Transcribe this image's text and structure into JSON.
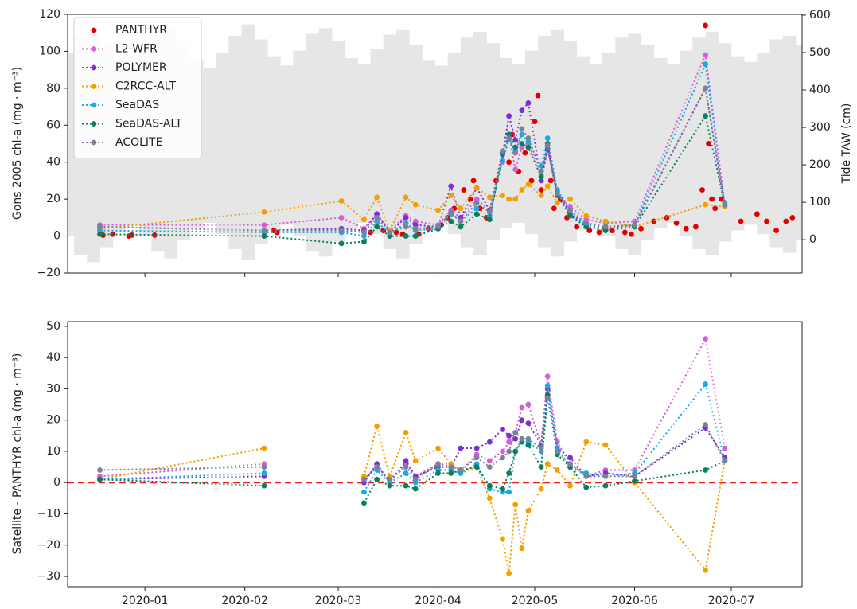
{
  "chart_data": [
    {
      "type": "line",
      "ylabel": "Gons 2005 chl-a (mg · m⁻³)",
      "y2label": "Tide TAW (cm)",
      "xlim": [
        -24,
        204
      ],
      "ylim": [
        -20,
        120
      ],
      "yticks": [
        {
          "value": -20,
          "label": "−20"
        },
        0,
        20,
        40,
        60,
        80,
        100,
        120
      ],
      "y2lim": [
        -89,
        602
      ],
      "y2ticks": [
        0,
        100,
        200,
        300,
        400,
        500,
        600
      ],
      "legend": "upper left",
      "tide": {
        "axis": "y2",
        "color": "#e6e6e6",
        "x": [
          -24,
          -20,
          -16,
          -12,
          -8,
          -4,
          0,
          4,
          8,
          12,
          16,
          20,
          24,
          28,
          32,
          36,
          40,
          44,
          48,
          52,
          56,
          60,
          64,
          68,
          72,
          76,
          80,
          84,
          88,
          92,
          96,
          100,
          104,
          108,
          112,
          116,
          120,
          124,
          128,
          132,
          136,
          140,
          144,
          148,
          152,
          156,
          160,
          164,
          168,
          172,
          176,
          180,
          184,
          188,
          192,
          196,
          200,
          204
        ],
        "high": [
          500,
          540,
          560,
          520,
          480,
          470,
          510,
          550,
          570,
          530,
          480,
          460,
          500,
          545,
          575,
          535,
          490,
          465,
          505,
          550,
          565,
          530,
          485,
          470,
          510,
          548,
          560,
          520,
          480,
          465,
          500,
          540,
          555,
          525,
          485,
          470,
          505,
          545,
          560,
          530,
          490,
          470,
          500,
          540,
          550,
          520,
          485,
          470,
          505,
          540,
          555,
          525,
          490,
          475,
          500,
          535,
          545,
          520
        ],
        "low": [
          10,
          -40,
          -60,
          -20,
          20,
          40,
          10,
          -30,
          -50,
          0,
          30,
          45,
          15,
          -25,
          -55,
          -10,
          25,
          40,
          10,
          -30,
          -45,
          -5,
          30,
          45,
          15,
          -25,
          -50,
          -10,
          25,
          40,
          15,
          -20,
          -40,
          0,
          30,
          45,
          15,
          -20,
          -45,
          -5,
          25,
          40,
          10,
          -25,
          -40,
          0,
          30,
          45,
          10,
          -25,
          -40,
          -5,
          25,
          40,
          15,
          -20,
          -35,
          0
        ]
      },
      "x": [
        -14,
        37,
        61,
        68,
        72,
        76,
        81,
        84,
        91,
        95,
        98,
        103,
        107,
        111,
        113,
        115,
        117,
        119,
        123,
        125,
        128,
        132,
        137,
        143,
        152,
        174,
        180
      ],
      "series": [
        {
          "name": "PANTHYR",
          "color": "#e00000",
          "style": "markers",
          "x": [
            -13,
            -10,
            -5,
            -4,
            3,
            37,
            40,
            41,
            70,
            74,
            78,
            80,
            85,
            88,
            92,
            94,
            96,
            99,
            101,
            102,
            104,
            106,
            109,
            111,
            113,
            114,
            116,
            118,
            120,
            121,
            122,
            123,
            126,
            127,
            129,
            131,
            134,
            138,
            141,
            145,
            149,
            151,
            154,
            158,
            162,
            165,
            168,
            171,
            173,
            174,
            175,
            176,
            177,
            179,
            185,
            190,
            193,
            196,
            199,
            201
          ],
          "values": [
            0.5,
            1,
            0,
            0.5,
            0.5,
            2,
            3,
            2,
            2,
            3,
            2,
            1,
            1,
            4,
            6,
            10,
            15,
            25,
            20,
            30,
            15,
            10,
            30,
            45,
            40,
            55,
            35,
            45,
            30,
            62,
            76,
            25,
            30,
            15,
            20,
            10,
            5,
            3,
            2,
            3,
            2,
            1,
            4,
            8,
            10,
            7,
            4,
            5,
            25,
            114,
            50,
            20,
            15,
            20,
            8,
            12,
            8,
            3,
            8,
            10
          ]
        },
        {
          "name": "L2-WFR",
          "color": "#d65fd8",
          "style": "dotted",
          "values": [
            6,
            6,
            10,
            4,
            12,
            3,
            11,
            8,
            6,
            14,
            10,
            20,
            14,
            40,
            55,
            36,
            48,
            50,
            33,
            47,
            22,
            16,
            9,
            7,
            8,
            98,
            17
          ]
        },
        {
          "name": "POLYMER",
          "color": "#7b2fd4",
          "style": "dotted",
          "values": [
            5,
            3,
            4,
            3,
            12,
            2,
            10,
            6,
            5,
            27,
            10,
            26,
            14,
            44,
            65,
            52,
            68,
            72,
            30,
            47,
            24,
            12,
            6,
            4,
            6,
            80,
            16
          ]
        },
        {
          "name": "C2RCC-ALT",
          "color": "#f0a000",
          "style": "dotted",
          "values": [
            4,
            13,
            19,
            9,
            21,
            3,
            21,
            17,
            14,
            22,
            15,
            26,
            21,
            22,
            20,
            20,
            25,
            28,
            22,
            27,
            18,
            20,
            11,
            8,
            5,
            17,
            16
          ]
        },
        {
          "name": "SeaDAS",
          "color": "#1aa8e6",
          "style": "dotted",
          "values": [
            3,
            2,
            2,
            0,
            8,
            1,
            7,
            3,
            4,
            12,
            8,
            15,
            11,
            41,
            52,
            46,
            55,
            51,
            38,
            53,
            25,
            14,
            6,
            5,
            6,
            93,
            18
          ]
        },
        {
          "name": "SeaDAS-ALT",
          "color": "#08805e",
          "style": "dotted",
          "values": [
            1,
            0,
            -4,
            -3,
            5,
            0,
            0,
            0,
            4,
            8,
            5,
            12,
            9,
            45,
            55,
            48,
            50,
            48,
            32,
            50,
            22,
            11,
            5,
            3,
            5,
            65,
            17
          ]
        },
        {
          "name": "ACOLITE",
          "color": "#7c8296",
          "style": "dotted",
          "values": [
            5,
            3,
            3,
            2,
            10,
            2,
            5,
            4,
            5,
            13,
            8,
            18,
            13,
            46,
            53,
            45,
            58,
            53,
            35,
            49,
            23,
            14,
            7,
            5,
            6,
            80,
            17
          ]
        }
      ]
    },
    {
      "type": "line",
      "ylabel": "Satellite - PANTHYR chl-a (mg · m⁻³)",
      "xlim": [
        -24,
        204
      ],
      "xticks": [
        {
          "value": 0,
          "label": "2020-01"
        },
        {
          "value": 31,
          "label": "2020-02"
        },
        {
          "value": 60,
          "label": "2020-03"
        },
        {
          "value": 91,
          "label": "2020-04"
        },
        {
          "value": 121,
          "label": "2020-05"
        },
        {
          "value": 152,
          "label": "2020-06"
        },
        {
          "value": 182,
          "label": "2020-07"
        }
      ],
      "ylim": [
        -33.3,
        51.5
      ],
      "yticks": [
        {
          "value": -30,
          "label": "−30"
        },
        {
          "value": -20,
          "label": "−20"
        },
        {
          "value": -10,
          "label": "−10"
        },
        0,
        10,
        20,
        30,
        40,
        50
      ],
      "hline": 0,
      "hline_color": "#e8201a",
      "x": [
        -14,
        37,
        61,
        68,
        72,
        76,
        81,
        84,
        91,
        95,
        98,
        103,
        107,
        111,
        113,
        115,
        117,
        119,
        123,
        125,
        128,
        132,
        137,
        143,
        152,
        174,
        180
      ],
      "series": [
        {
          "name": "L2-WFR",
          "color": "#d65fd8",
          "style": "dotted",
          "values": [
            2,
            6,
            null,
            1,
            5,
            1,
            6,
            2,
            6,
            6,
            4,
            9,
            7,
            10,
            13,
            16,
            24,
            25,
            12,
            34,
            13,
            6,
            2,
            4,
            4,
            46,
            11
          ]
        },
        {
          "name": "POLYMER",
          "color": "#7b2fd4",
          "style": "dotted",
          "values": [
            1,
            2,
            null,
            0,
            6,
            0,
            7,
            2,
            5,
            5,
            11,
            11,
            13,
            17,
            15,
            14,
            20,
            19,
            12,
            30,
            11,
            8,
            2,
            3,
            2,
            17.5,
            8
          ]
        },
        {
          "name": "C2RCC-ALT",
          "color": "#f0a000",
          "style": "dotted",
          "values": [
            1,
            11,
            null,
            2,
            18,
            2,
            16,
            7,
            11,
            6,
            3,
            5,
            -5,
            -18,
            -29,
            -7,
            -21,
            -9,
            -2,
            6,
            4,
            -1,
            13,
            12,
            0,
            -28,
            7
          ]
        },
        {
          "name": "SeaDAS",
          "color": "#1aa8e6",
          "style": "dotted",
          "values": [
            1,
            3,
            null,
            -3,
            4,
            0,
            3,
            0,
            4,
            4,
            3,
            6,
            -2,
            -3,
            -3,
            10,
            14,
            13,
            10,
            31,
            11,
            5,
            3,
            2,
            3,
            31.5,
            7
          ]
        },
        {
          "name": "SeaDAS-ALT",
          "color": "#08805e",
          "style": "dotted",
          "values": [
            1,
            -1,
            null,
            -6.5,
            1,
            -1,
            -1,
            -2,
            3,
            3,
            4,
            5,
            -1,
            -2,
            3,
            10,
            13,
            12,
            5,
            28,
            9,
            5,
            -1.5,
            -1,
            0.5,
            4,
            7
          ]
        },
        {
          "name": "ACOLITE",
          "color": "#7c8296",
          "style": "dotted",
          "values": [
            4,
            5,
            null,
            1,
            5,
            1,
            5,
            1,
            6,
            5,
            4,
            8,
            5,
            8,
            10,
            16,
            14,
            14,
            11,
            27,
            10,
            6,
            2,
            2,
            2,
            18.5,
            7
          ]
        }
      ]
    }
  ]
}
